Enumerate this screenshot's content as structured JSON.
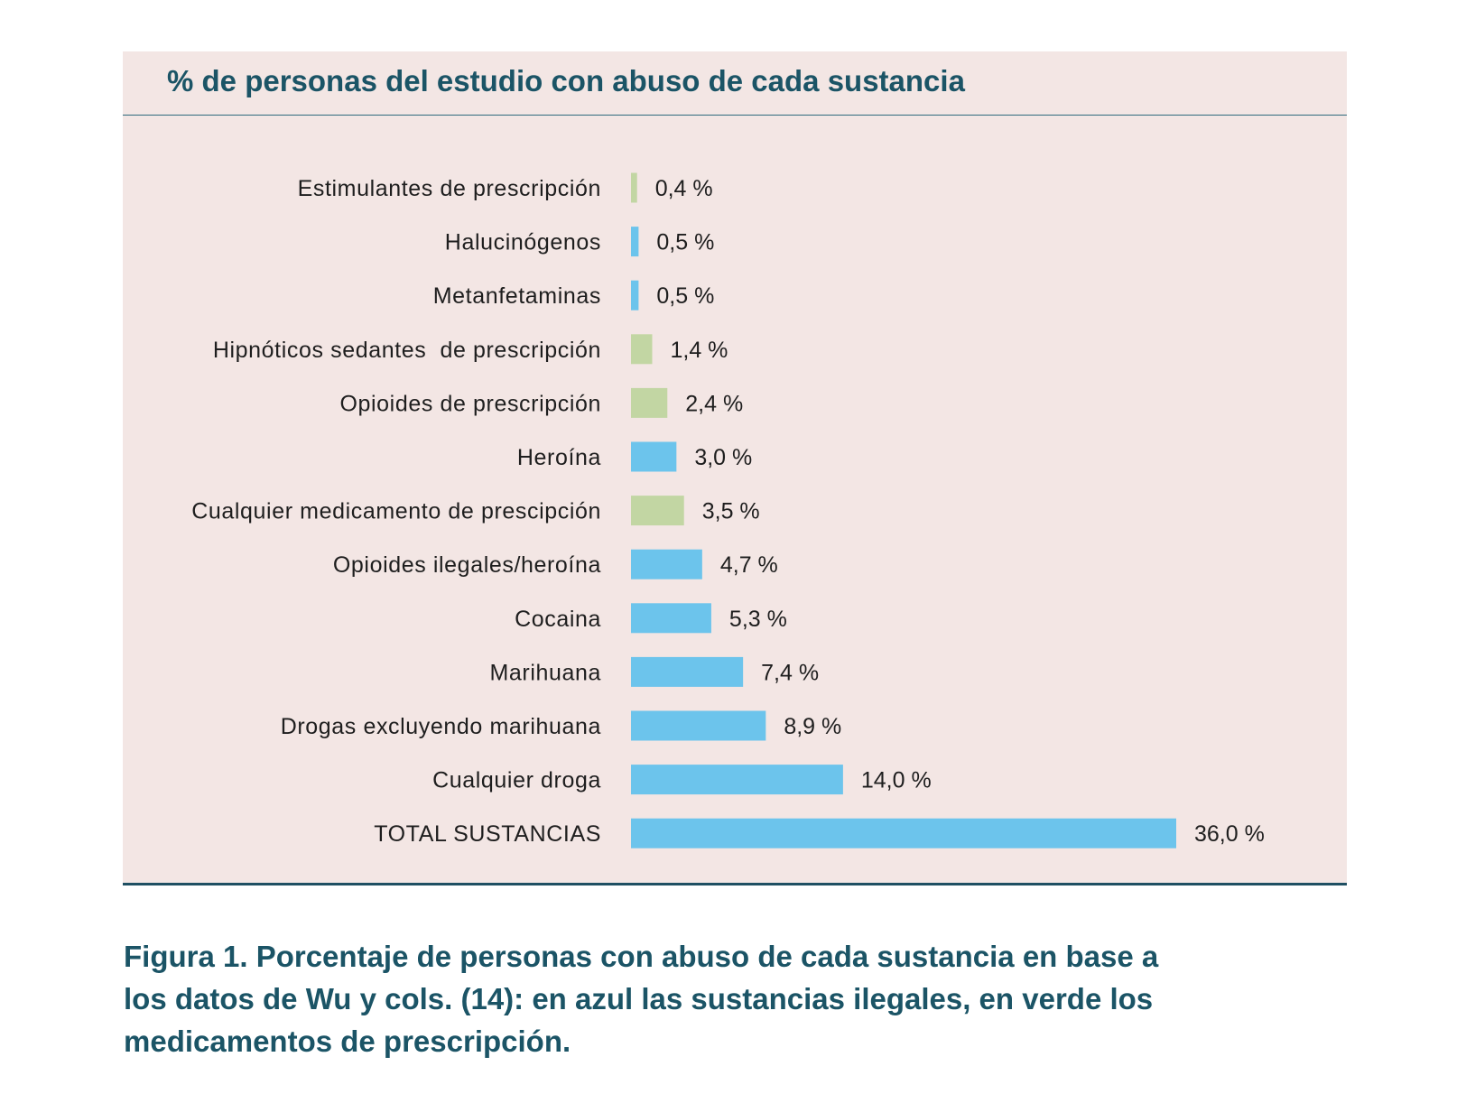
{
  "chart_data": {
    "type": "bar",
    "orientation": "horizontal",
    "title": "% de personas del estudio con abuso de cada sustancia",
    "categories": [
      "Estimulantes de prescripción",
      "Halucinógenos",
      "Metanfetaminas",
      "Hipnóticos sedantes  de prescripción",
      "Opioides de prescripción",
      "Heroína",
      "Cualquier medicamento de prescipción",
      "Opioides ilegales/heroína",
      "Cocaina",
      "Marihuana",
      "Drogas excluyendo marihuana",
      "Cualquier droga",
      "TOTAL SUSTANCIAS"
    ],
    "values": [
      0.4,
      0.5,
      0.5,
      1.4,
      2.4,
      3.0,
      3.5,
      4.7,
      5.3,
      7.4,
      8.9,
      14.0,
      36.0
    ],
    "value_labels": [
      "0,4 %",
      "0,5 %",
      "0,5 %",
      "1,4 %",
      "2,4 %",
      "3,0 %",
      "3,5 %",
      "4,7 %",
      "5,3 %",
      "7,4 %",
      "8,9 %",
      "14,0 %",
      "36,0 %"
    ],
    "groups": [
      "prescription",
      "illegal",
      "illegal",
      "prescription",
      "prescription",
      "illegal",
      "prescription",
      "illegal",
      "illegal",
      "illegal",
      "illegal",
      "illegal",
      "illegal"
    ],
    "group_colors": {
      "illegal": "#6cc4ec",
      "prescription": "#c2d6a3"
    },
    "xlim": [
      0,
      36.0
    ],
    "grid": false,
    "legend": "none"
  },
  "caption": "Figura 1. Porcentaje de personas con abuso de cada sustancia en base a los datos de Wu y cols. (14): en azul las sustancias ilegales, en verde los medicamentos de prescripción.",
  "colors": {
    "panel_background": "#f3e6e4",
    "title_text": "#1b5466",
    "rule_line": "#1f4f62"
  }
}
